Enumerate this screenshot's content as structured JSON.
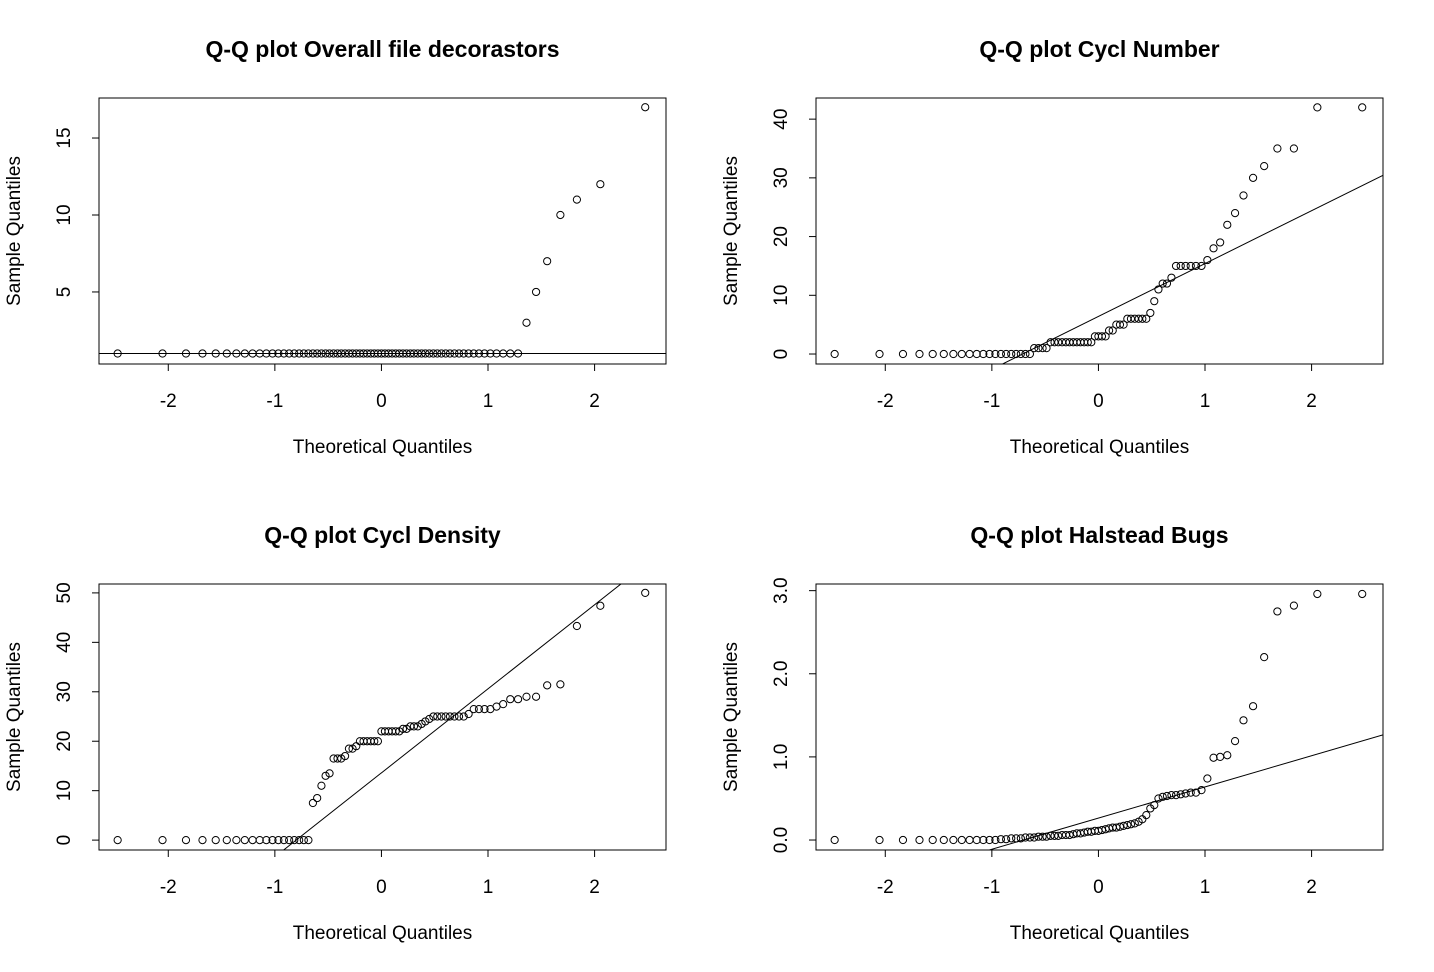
{
  "chart_data": [
    {
      "type": "scatter",
      "title": "Q-Q plot  Overall file decorastors",
      "xlabel": "Theoretical Quantiles",
      "ylabel": "Sample Quantiles",
      "color": "#000000",
      "x": [
        -2.475,
        -2.054,
        -1.834,
        -1.679,
        -1.555,
        -1.451,
        -1.361,
        -1.282,
        -1.209,
        -1.142,
        -1.08,
        -1.022,
        -0.967,
        -0.915,
        -0.866,
        -0.818,
        -0.772,
        -0.728,
        -0.685,
        -0.643,
        -0.603,
        -0.563,
        -0.524,
        -0.487,
        -0.449,
        -0.412,
        -0.377,
        -0.341,
        -0.305,
        -0.271,
        -0.236,
        -0.202,
        -0.168,
        -0.134,
        -0.1,
        -0.067,
        -0.033,
        0,
        0.033,
        0.067,
        0.1,
        0.134,
        0.168,
        0.202,
        0.236,
        0.271,
        0.305,
        0.341,
        0.377,
        0.412,
        0.449,
        0.487,
        0.524,
        0.563,
        0.603,
        0.643,
        0.685,
        0.728,
        0.772,
        0.818,
        0.866,
        0.915,
        0.967,
        1.022,
        1.08,
        1.142,
        1.209,
        1.282,
        1.361,
        1.451,
        1.555,
        1.679,
        1.834,
        2.054,
        2.475
      ],
      "values": [
        1,
        1,
        1,
        1,
        1,
        1,
        1,
        1,
        1,
        1,
        1,
        1,
        1,
        1,
        1,
        1,
        1,
        1,
        1,
        1,
        1,
        1,
        1,
        1,
        1,
        1,
        1,
        1,
        1,
        1,
        1,
        1,
        1,
        1,
        1,
        1,
        1,
        1,
        1,
        1,
        1,
        1,
        1,
        1,
        1,
        1,
        1,
        1,
        1,
        1,
        1,
        1,
        1,
        1,
        1,
        1,
        1,
        1,
        1,
        1,
        1,
        1,
        1,
        1,
        1,
        1,
        1,
        1,
        3,
        5,
        7,
        10,
        11,
        12,
        17
      ],
      "xlim": [
        -2.65,
        2.67
      ],
      "ylim": [
        0.32,
        17.6
      ],
      "xticks": [
        -2,
        -1,
        0,
        1,
        2
      ],
      "yticks": [
        5,
        10,
        15
      ],
      "fit_line": {
        "intercept": 1,
        "slope": 0
      }
    },
    {
      "type": "scatter",
      "title": "Q-Q plot  Cycl  Number",
      "xlabel": "Theoretical Quantiles",
      "ylabel": "Sample Quantiles",
      "color": "#000000",
      "x": [
        -2.475,
        -2.054,
        -1.834,
        -1.679,
        -1.555,
        -1.451,
        -1.361,
        -1.282,
        -1.209,
        -1.142,
        -1.08,
        -1.022,
        -0.967,
        -0.915,
        -0.866,
        -0.818,
        -0.772,
        -0.728,
        -0.685,
        -0.643,
        -0.603,
        -0.563,
        -0.524,
        -0.487,
        -0.449,
        -0.412,
        -0.377,
        -0.341,
        -0.305,
        -0.271,
        -0.236,
        -0.202,
        -0.168,
        -0.134,
        -0.1,
        -0.067,
        -0.033,
        0,
        0.033,
        0.067,
        0.1,
        0.134,
        0.168,
        0.202,
        0.236,
        0.271,
        0.305,
        0.341,
        0.377,
        0.412,
        0.449,
        0.487,
        0.524,
        0.563,
        0.603,
        0.643,
        0.685,
        0.728,
        0.772,
        0.818,
        0.866,
        0.915,
        0.967,
        1.022,
        1.08,
        1.142,
        1.209,
        1.282,
        1.361,
        1.451,
        1.555,
        1.679,
        1.834,
        2.054,
        2.475
      ],
      "values": [
        0,
        0,
        0,
        0,
        0,
        0,
        0,
        0,
        0,
        0,
        0,
        0,
        0,
        0,
        0,
        0,
        0,
        0,
        0,
        0,
        1,
        1,
        1,
        1,
        2,
        2,
        2,
        2,
        2,
        2,
        2,
        2,
        2,
        2,
        2,
        2,
        3,
        3,
        3,
        3,
        4,
        4,
        5,
        5,
        5,
        6,
        6,
        6,
        6,
        6,
        6,
        7,
        9,
        11,
        12,
        12,
        13,
        15,
        15,
        15,
        15,
        15,
        15,
        16,
        18,
        19,
        22,
        24,
        27,
        30,
        32,
        35,
        35,
        42,
        42
      ],
      "xlim": [
        -2.65,
        2.67
      ],
      "ylim": [
        -1.7,
        43.6
      ],
      "xticks": [
        -2,
        -1,
        0,
        1,
        2
      ],
      "yticks": [
        0,
        10,
        20,
        30,
        40
      ],
      "fit_line": {
        "intercept": 6.4,
        "slope": 9.0
      }
    },
    {
      "type": "scatter",
      "title": "Q-Q plot  Cycl  Density",
      "xlabel": "Theoretical Quantiles",
      "ylabel": "Sample Quantiles",
      "color": "#000000",
      "x": [
        -2.475,
        -2.054,
        -1.834,
        -1.679,
        -1.555,
        -1.451,
        -1.361,
        -1.282,
        -1.209,
        -1.142,
        -1.08,
        -1.022,
        -0.967,
        -0.915,
        -0.866,
        -0.818,
        -0.772,
        -0.728,
        -0.685,
        -0.643,
        -0.603,
        -0.563,
        -0.524,
        -0.487,
        -0.449,
        -0.412,
        -0.377,
        -0.341,
        -0.305,
        -0.271,
        -0.236,
        -0.202,
        -0.168,
        -0.134,
        -0.1,
        -0.067,
        -0.033,
        0,
        0.033,
        0.067,
        0.1,
        0.134,
        0.168,
        0.202,
        0.236,
        0.271,
        0.305,
        0.341,
        0.377,
        0.412,
        0.449,
        0.487,
        0.524,
        0.563,
        0.603,
        0.643,
        0.685,
        0.728,
        0.772,
        0.818,
        0.866,
        0.915,
        0.967,
        1.022,
        1.08,
        1.142,
        1.209,
        1.282,
        1.361,
        1.451,
        1.555,
        1.679,
        1.834,
        2.054,
        2.475
      ],
      "values": [
        0,
        0,
        0,
        0,
        0,
        0,
        0,
        0,
        0,
        0,
        0,
        0,
        0,
        0,
        0,
        0,
        0,
        0,
        0,
        7.5,
        8.5,
        11,
        13,
        13.5,
        16.5,
        16.5,
        16.5,
        17,
        18.5,
        18.5,
        19,
        20,
        20,
        20,
        20,
        20,
        20,
        22,
        22,
        22,
        22,
        22,
        22,
        22.5,
        22.5,
        23,
        23,
        23,
        23.5,
        24,
        24.5,
        25,
        25,
        25,
        25,
        25,
        25,
        25,
        25,
        25.5,
        26.5,
        26.5,
        26.5,
        26.5,
        27,
        27.5,
        28.5,
        28.5,
        29,
        29,
        31.3,
        31.5,
        43.3,
        47.4,
        50
      ],
      "xlim": [
        -2.65,
        2.67
      ],
      "ylim": [
        -2.0,
        51.8
      ],
      "xticks": [
        -2,
        -1,
        0,
        1,
        2
      ],
      "yticks": [
        0,
        10,
        20,
        30,
        40,
        50
      ],
      "fit_line": {
        "intercept": 13.6,
        "slope": 17.0
      }
    },
    {
      "type": "scatter",
      "title": "Q-Q plot  Halstead Bugs",
      "xlabel": "Theoretical Quantiles",
      "ylabel": "Sample Quantiles",
      "color": "#000000",
      "x": [
        -2.475,
        -2.054,
        -1.834,
        -1.679,
        -1.555,
        -1.451,
        -1.361,
        -1.282,
        -1.209,
        -1.142,
        -1.08,
        -1.022,
        -0.967,
        -0.915,
        -0.866,
        -0.818,
        -0.772,
        -0.728,
        -0.685,
        -0.643,
        -0.603,
        -0.563,
        -0.524,
        -0.487,
        -0.449,
        -0.412,
        -0.377,
        -0.341,
        -0.305,
        -0.271,
        -0.236,
        -0.202,
        -0.168,
        -0.134,
        -0.1,
        -0.067,
        -0.033,
        0,
        0.033,
        0.067,
        0.1,
        0.134,
        0.168,
        0.202,
        0.236,
        0.271,
        0.305,
        0.341,
        0.377,
        0.412,
        0.449,
        0.487,
        0.524,
        0.563,
        0.603,
        0.643,
        0.685,
        0.728,
        0.772,
        0.818,
        0.866,
        0.915,
        0.967,
        1.022,
        1.08,
        1.142,
        1.209,
        1.282,
        1.361,
        1.451,
        1.555,
        1.679,
        1.834,
        2.054,
        2.475
      ],
      "values": [
        0,
        0,
        0,
        0,
        0,
        0,
        0,
        0,
        0,
        0,
        0,
        0,
        0,
        0.01,
        0.01,
        0.02,
        0.02,
        0.02,
        0.03,
        0.03,
        0.03,
        0.04,
        0.04,
        0.04,
        0.05,
        0.05,
        0.05,
        0.06,
        0.06,
        0.06,
        0.07,
        0.08,
        0.08,
        0.09,
        0.1,
        0.1,
        0.11,
        0.11,
        0.12,
        0.13,
        0.14,
        0.15,
        0.15,
        0.16,
        0.17,
        0.18,
        0.19,
        0.2,
        0.22,
        0.25,
        0.3,
        0.38,
        0.42,
        0.5,
        0.52,
        0.53,
        0.54,
        0.54,
        0.55,
        0.56,
        0.57,
        0.57,
        0.6,
        0.74,
        0.99,
        1.0,
        1.02,
        1.19,
        1.44,
        1.61,
        2.2,
        2.75,
        2.82,
        2.96,
        2.96
      ],
      "xlim": [
        -2.65,
        2.67
      ],
      "ylim": [
        -0.12,
        3.08
      ],
      "xticks": [
        -2,
        -1,
        0,
        1,
        2
      ],
      "yticks": [
        {
          "value": 0,
          "label": "0.0"
        },
        {
          "value": 1,
          "label": "1.0"
        },
        {
          "value": 2,
          "label": "2.0"
        },
        {
          "value": 3,
          "label": "3.0"
        }
      ],
      "fit_line": {
        "intercept": 0.264,
        "slope": 0.375
      }
    }
  ]
}
